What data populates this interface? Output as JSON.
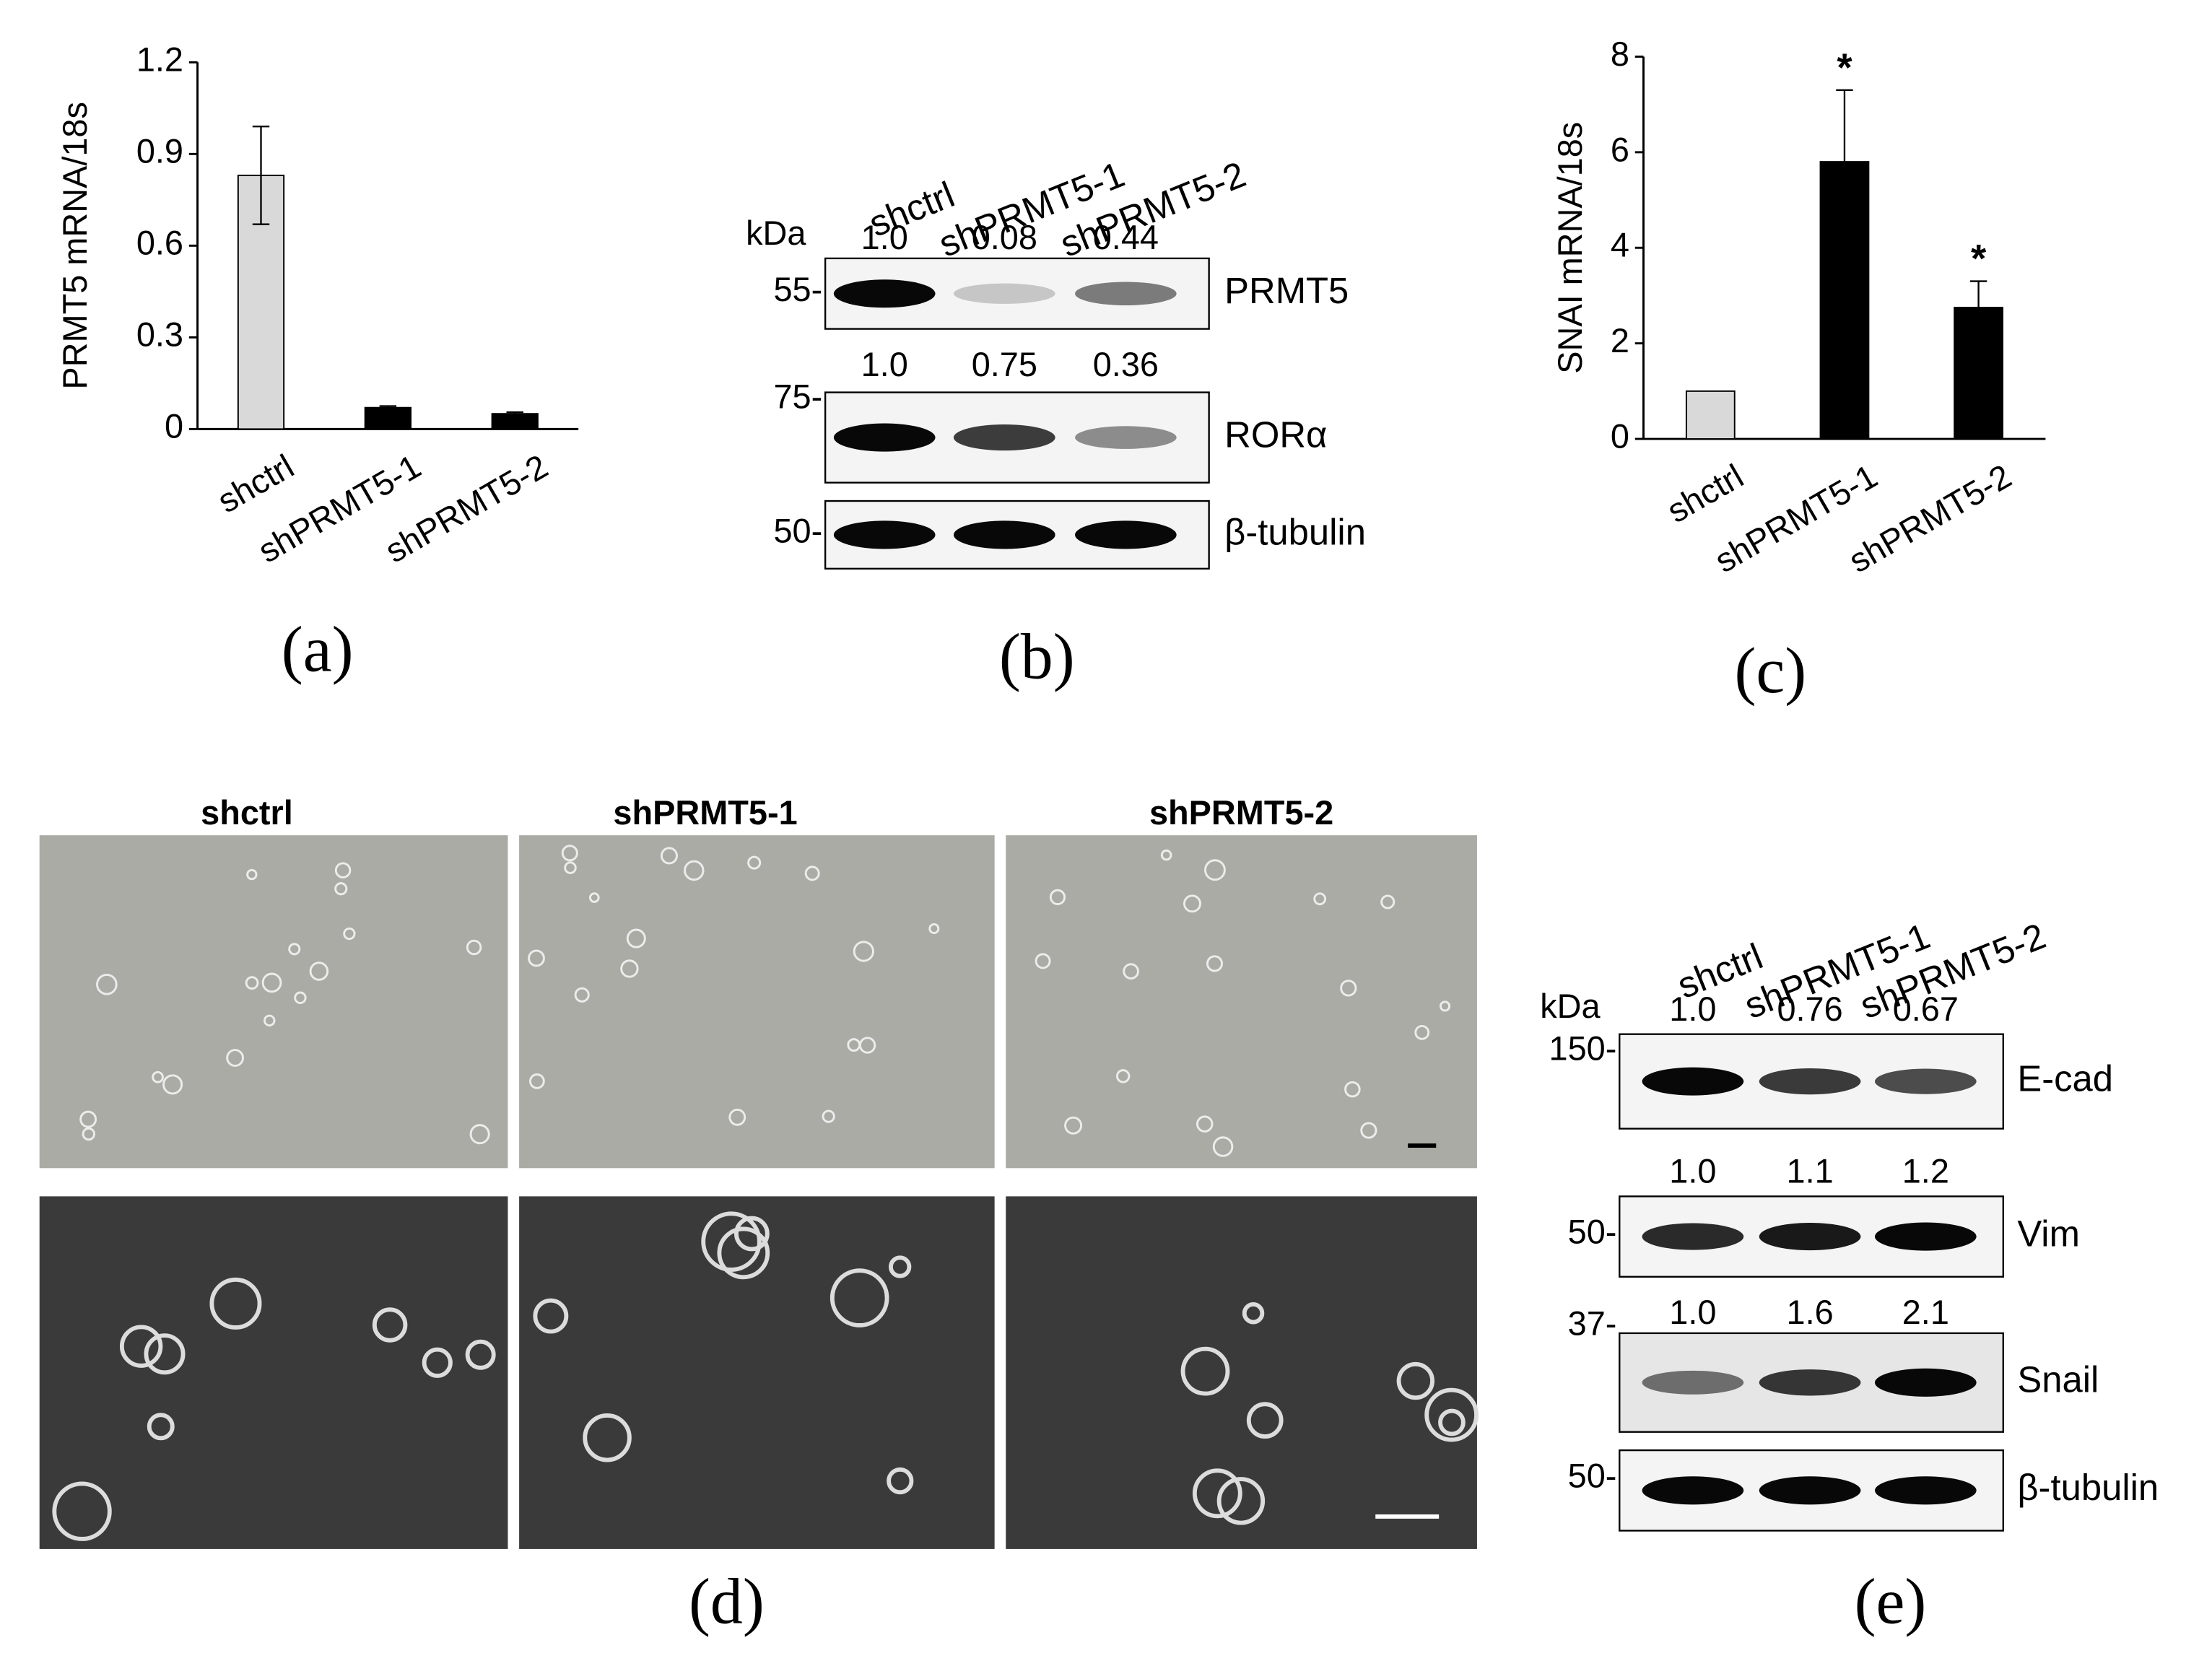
{
  "chart_data": [
    {
      "type": "bar",
      "label": "(a)",
      "ylabel": "PRMT5 mRNA/18s",
      "categories": [
        "shctrl",
        "shPRMT5-1",
        "shPRMT5-2"
      ],
      "values": [
        0.83,
        0.07,
        0.05
      ],
      "errors": [
        0.16,
        0.005,
        0.005
      ],
      "colors": [
        "#d9d9d9",
        "#000000",
        "#000000"
      ],
      "ylim": [
        0,
        1.2
      ],
      "yticks": [
        0,
        0.3,
        0.6,
        0.9,
        1.2
      ]
    },
    {
      "type": "bar",
      "label": "(c)",
      "ylabel": "SNAI mRNA/18s",
      "categories": [
        "shctrl",
        "shPRMT5-1",
        "shPRMT5-2"
      ],
      "values": [
        1.0,
        5.8,
        2.75
      ],
      "errors": [
        null,
        1.5,
        0.55
      ],
      "annotations": [
        null,
        "*",
        "*"
      ],
      "colors": [
        "#d9d9d9",
        "#000000",
        "#000000"
      ],
      "ylim": [
        0,
        8
      ],
      "yticks": [
        0,
        2,
        4,
        6,
        8
      ]
    }
  ],
  "blots": [
    {
      "label": "(b)",
      "kda": "kDa",
      "lanes": [
        "shctrl",
        "shPRMT5-1",
        "shPRMT5-2"
      ],
      "rows": [
        {
          "name": "PRMT5",
          "marker": "55-",
          "quantification": [
            "1.0",
            "0.08",
            "0.44"
          ]
        },
        {
          "name": "RORα",
          "marker": "75-",
          "quantification": [
            "1.0",
            "0.75",
            "0.36"
          ]
        },
        {
          "name": "β-tubulin",
          "marker": "50-"
        }
      ]
    },
    {
      "label": "(e)",
      "kda": "kDa",
      "lanes": [
        "shctrl",
        "shPRMT5-1",
        "shPRMT5-2"
      ],
      "rows": [
        {
          "name": "E-cad",
          "marker": "150-",
          "quantification": [
            "1.0",
            "0.76",
            "0.67"
          ]
        },
        {
          "name": "Vim",
          "marker": "50-",
          "quantification": [
            "1.0",
            "1.1",
            "1.2"
          ]
        },
        {
          "name": "Snail",
          "marker": "37-",
          "quantification": [
            "1.0",
            "1.6",
            "2.1"
          ]
        },
        {
          "name": "β-tubulin",
          "marker": "50-"
        }
      ]
    }
  ],
  "micrographs": {
    "label": "(d)",
    "columns": [
      "shctrl",
      "shPRMT5-1",
      "shPRMT5-2"
    ]
  }
}
